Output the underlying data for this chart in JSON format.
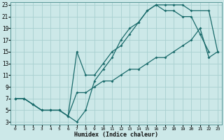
{
  "xlabel": "Humidex (Indice chaleur)",
  "bg_color": "#cce8e8",
  "grid_color": "#a8d0d0",
  "line_color": "#1a6b6b",
  "xlim": [
    0,
    23
  ],
  "ylim": [
    3,
    23
  ],
  "xticks": [
    0,
    1,
    2,
    3,
    4,
    5,
    6,
    7,
    8,
    9,
    10,
    11,
    12,
    13,
    14,
    15,
    16,
    17,
    18,
    19,
    20,
    21,
    22,
    23
  ],
  "yticks": [
    3,
    5,
    7,
    9,
    11,
    13,
    15,
    17,
    19,
    21,
    23
  ],
  "line1_x": [
    0,
    1,
    2,
    3,
    4,
    5,
    6,
    7,
    8,
    9,
    10,
    11,
    12,
    13,
    14,
    15,
    16,
    17,
    18,
    19,
    20,
    22,
    23
  ],
  "line1_y": [
    7,
    7,
    6,
    5,
    5,
    5,
    4,
    3,
    5,
    10,
    12,
    14,
    17,
    19,
    20,
    22,
    23,
    23,
    23,
    23,
    22,
    22,
    15
  ],
  "line2_x": [
    0,
    1,
    2,
    3,
    4,
    5,
    6,
    7,
    8,
    9,
    10,
    11,
    12,
    13,
    14,
    15,
    16,
    17,
    18,
    19,
    20,
    21,
    22
  ],
  "line2_y": [
    7,
    7,
    6,
    5,
    5,
    5,
    4,
    15,
    11,
    11,
    13,
    15,
    16,
    18,
    20,
    22,
    23,
    22,
    22,
    21,
    21,
    18,
    15
  ],
  "line3_x": [
    0,
    1,
    2,
    3,
    4,
    5,
    6,
    7,
    8,
    9,
    10,
    11,
    12,
    13,
    14,
    15,
    16,
    17,
    18,
    19,
    20,
    21,
    22,
    23
  ],
  "line3_y": [
    7,
    7,
    6,
    5,
    5,
    5,
    4,
    8,
    8,
    9,
    10,
    10,
    11,
    12,
    12,
    13,
    14,
    14,
    15,
    16,
    17,
    19,
    14,
    15
  ]
}
